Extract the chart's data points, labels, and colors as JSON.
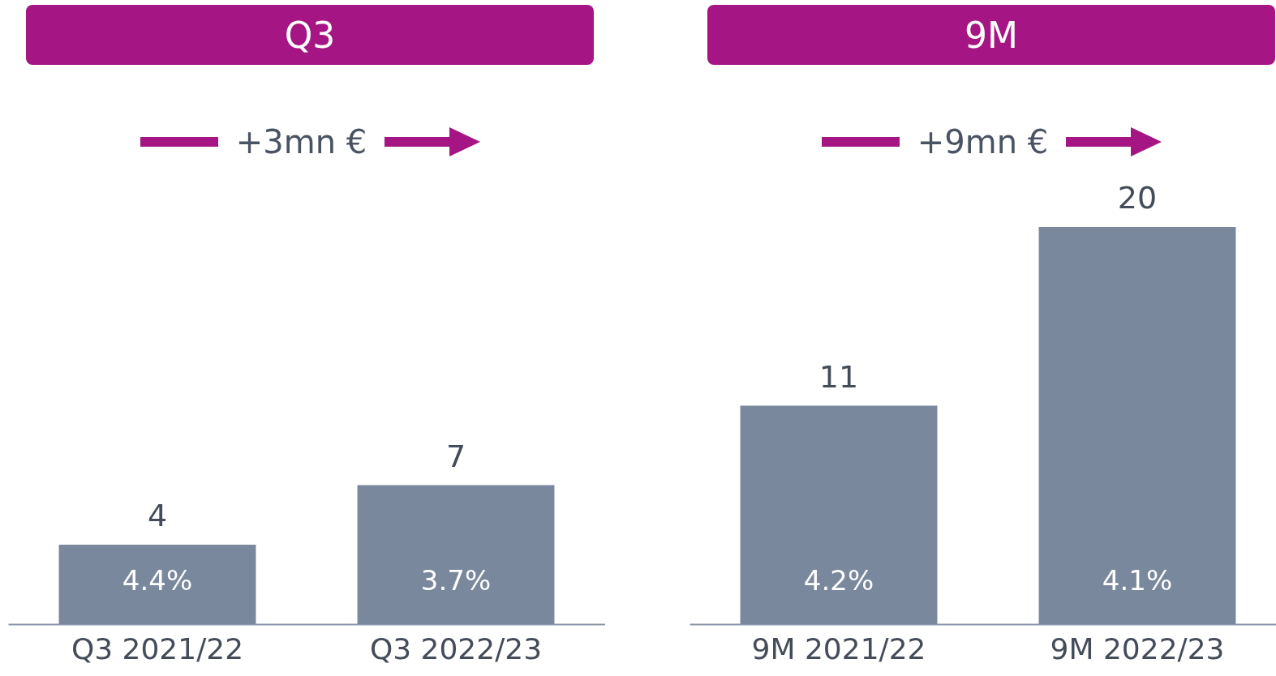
{
  "chart_data": [
    {
      "type": "bar",
      "title": "Q3",
      "categories": [
        "Q3 2021/22",
        "Q3 2022/23"
      ],
      "values": [
        4,
        7
      ],
      "color": "#7a889e",
      "data_labels": true,
      "annotations": [
        "+3mn €",
        "4.4%",
        "3.7%"
      ]
    },
    {
      "type": "bar",
      "title": "9M",
      "categories": [
        "9M 2021/22",
        "9M 2022/23"
      ],
      "values": [
        11,
        20
      ],
      "color": "#7a889e",
      "data_labels": true,
      "annotations": [
        "+9mn €",
        "4.2%",
        "4.1%"
      ]
    }
  ]
}
